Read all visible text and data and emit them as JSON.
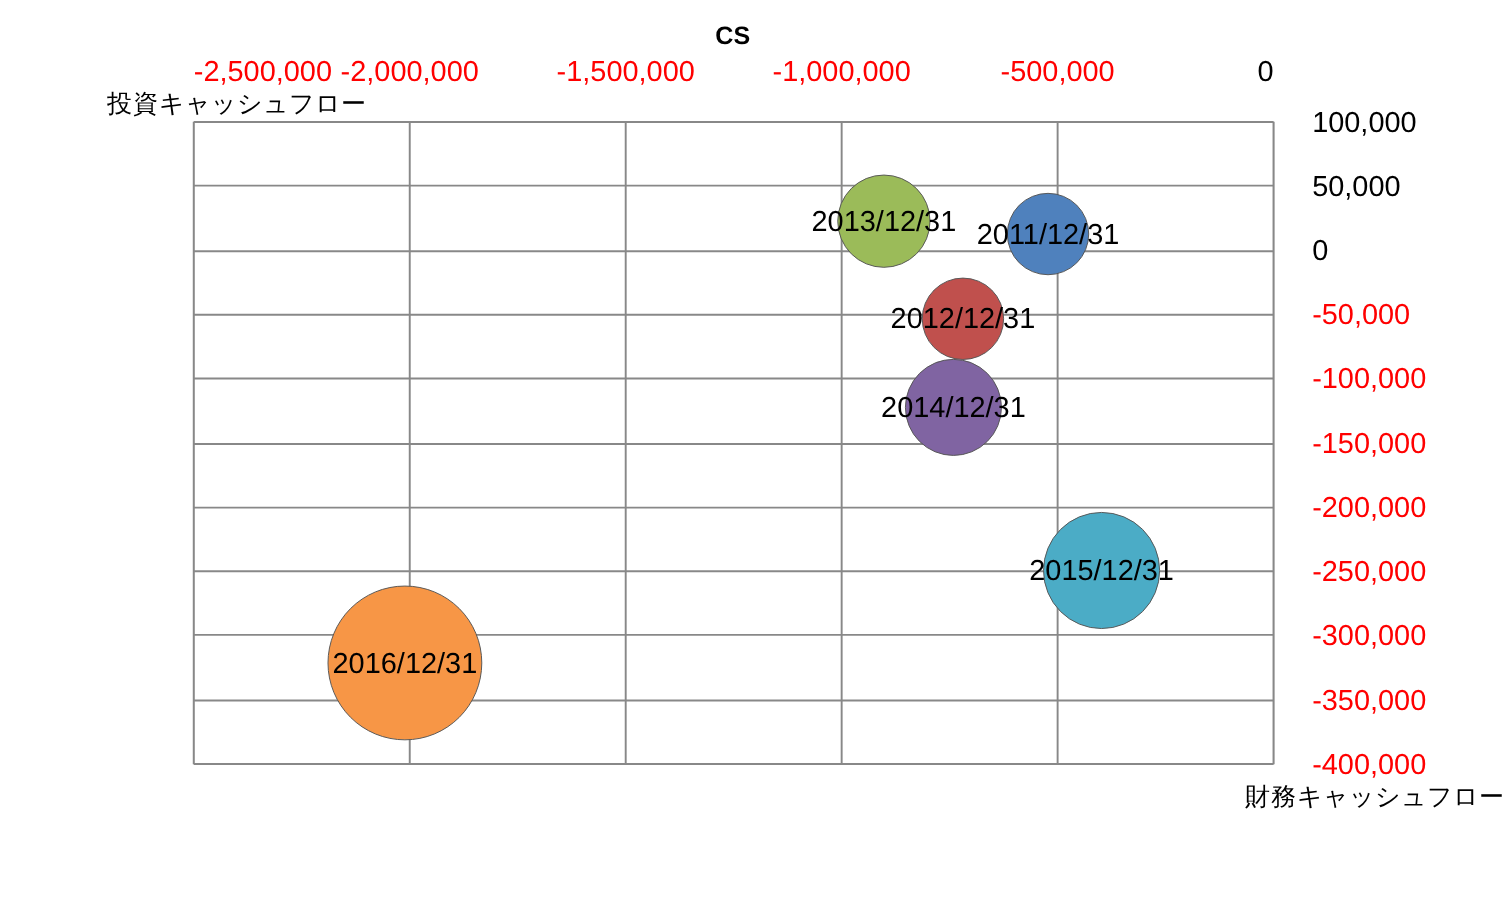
{
  "chart_data": {
    "type": "bubble",
    "title": "CS",
    "xlabel": "投資キャッシュフロー",
    "ylabel": "財務キャッシュフロー",
    "xlim": [
      -2500000,
      0
    ],
    "xticks": [
      {
        "value": -2500000,
        "label": "-2,500,000"
      },
      {
        "value": -2000000,
        "label": "-2,000,000"
      },
      {
        "value": -1500000,
        "label": "-1,500,000"
      },
      {
        "value": -1000000,
        "label": "-1,000,000"
      },
      {
        "value": -500000,
        "label": "-500,000"
      },
      0
    ],
    "ylim": [
      -400000,
      100000
    ],
    "yticks": [
      {
        "value": 100000,
        "label": "100,000"
      },
      {
        "value": 50000,
        "label": "50,000"
      },
      0,
      {
        "value": -50000,
        "label": "-50,000"
      },
      {
        "value": -100000,
        "label": "-100,000"
      },
      {
        "value": -150000,
        "label": "-150,000"
      },
      {
        "value": -200000,
        "label": "-200,000"
      },
      {
        "value": -250000,
        "label": "-250,000"
      },
      {
        "value": -300000,
        "label": "-300,000"
      },
      {
        "value": -350000,
        "label": "-350,000"
      },
      {
        "value": -400000,
        "label": "-400,000"
      }
    ],
    "grid": true,
    "legend": false,
    "series": [
      {
        "name": "2011/12/31",
        "color": "#4f81bd",
        "x": [
          -520000
        ],
        "values": [
          12000
        ],
        "sizes": [
          0.28
        ]
      },
      {
        "name": "2012/12/31",
        "color": "#c0504d",
        "x": [
          -717000
        ],
        "values": [
          -54000
        ],
        "sizes": [
          0.28
        ]
      },
      {
        "name": "2013/12/31",
        "color": "#9bbb59",
        "x": [
          -900000
        ],
        "values": [
          22000
        ],
        "sizes": [
          0.36
        ]
      },
      {
        "name": "2014/12/31",
        "color": "#8064a2",
        "x": [
          -739000
        ],
        "values": [
          -123000
        ],
        "sizes": [
          0.39
        ]
      },
      {
        "name": "2015/12/31",
        "color": "#4bacc6",
        "x": [
          -396000
        ],
        "values": [
          -250000
        ],
        "sizes": [
          0.57
        ]
      },
      {
        "name": "2016/12/31",
        "color": "#f79646",
        "x": [
          -2009000
        ],
        "values": [
          -322000
        ],
        "sizes": [
          1
        ]
      }
    ]
  }
}
